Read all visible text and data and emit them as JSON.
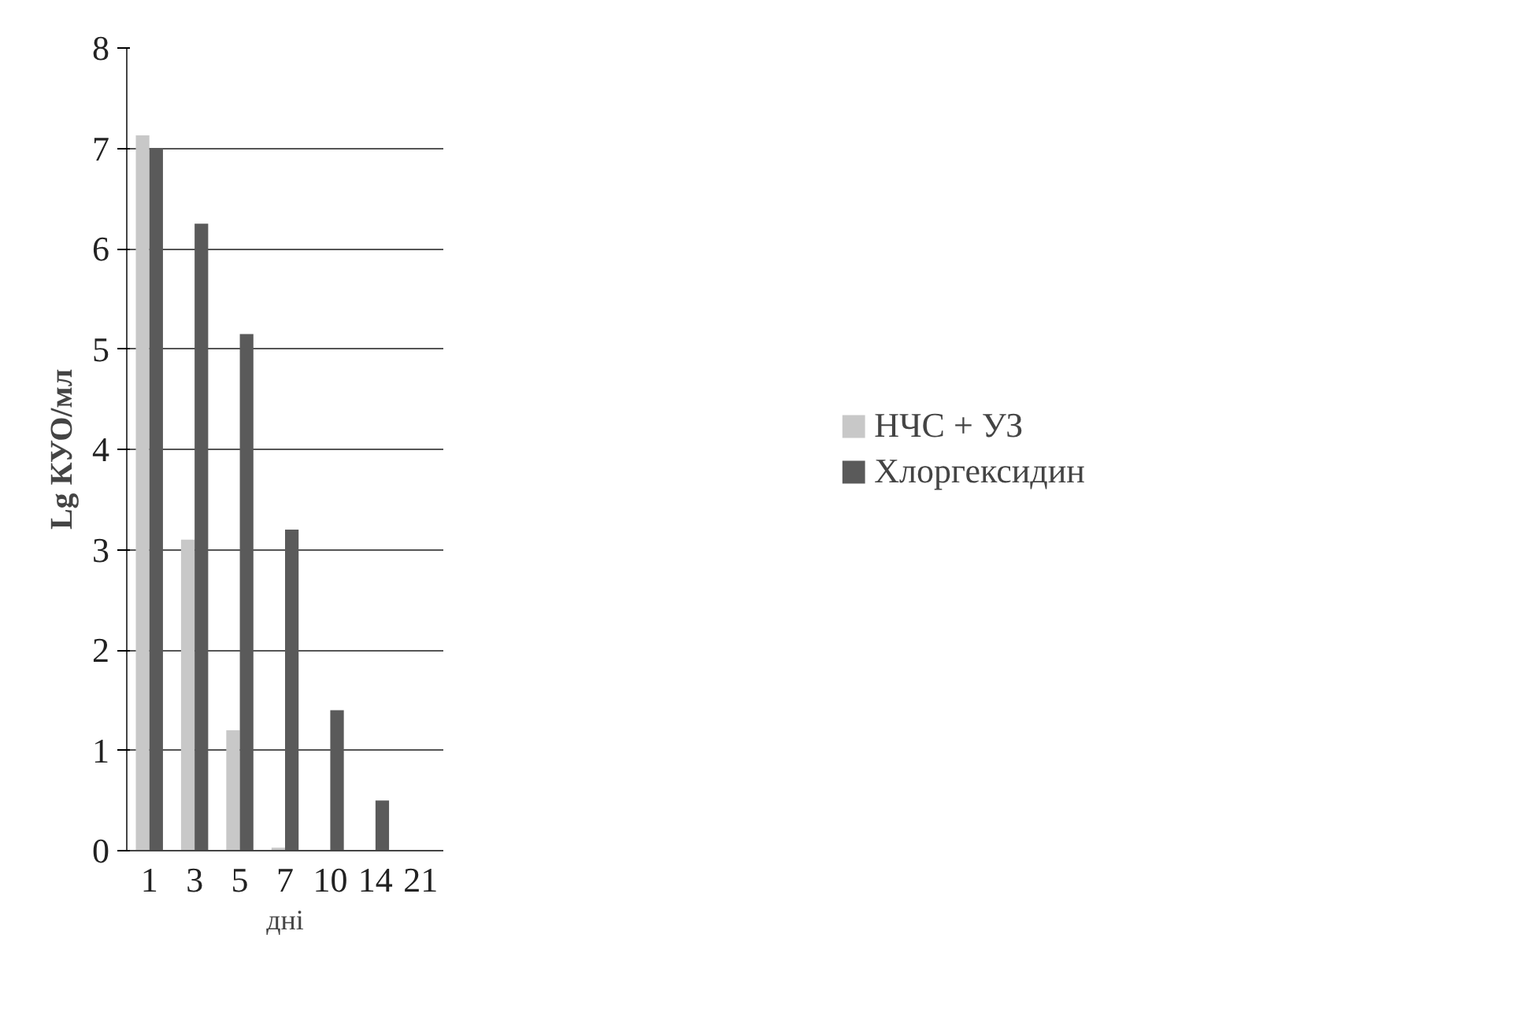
{
  "chart_data": {
    "type": "bar",
    "xlabel": "дні",
    "ylabel": "Lg КУО/мл",
    "categories": [
      "1",
      "3",
      "5",
      "7",
      "10",
      "14",
      "21"
    ],
    "series": [
      {
        "name": "НЧС + УЗ",
        "color": "#c8c8c8",
        "values": [
          7.13,
          3.1,
          1.2,
          0.03,
          0,
          0,
          0
        ]
      },
      {
        "name": "Хлоргексидин",
        "color": "#5a5a5a",
        "values": [
          7.0,
          6.25,
          5.15,
          3.2,
          1.4,
          0.5,
          0
        ]
      }
    ],
    "ylim": [
      0,
      8
    ],
    "yticks": [
      0,
      1,
      2,
      3,
      4,
      5,
      6,
      7,
      8
    ],
    "grid": "y",
    "legend": "right"
  }
}
